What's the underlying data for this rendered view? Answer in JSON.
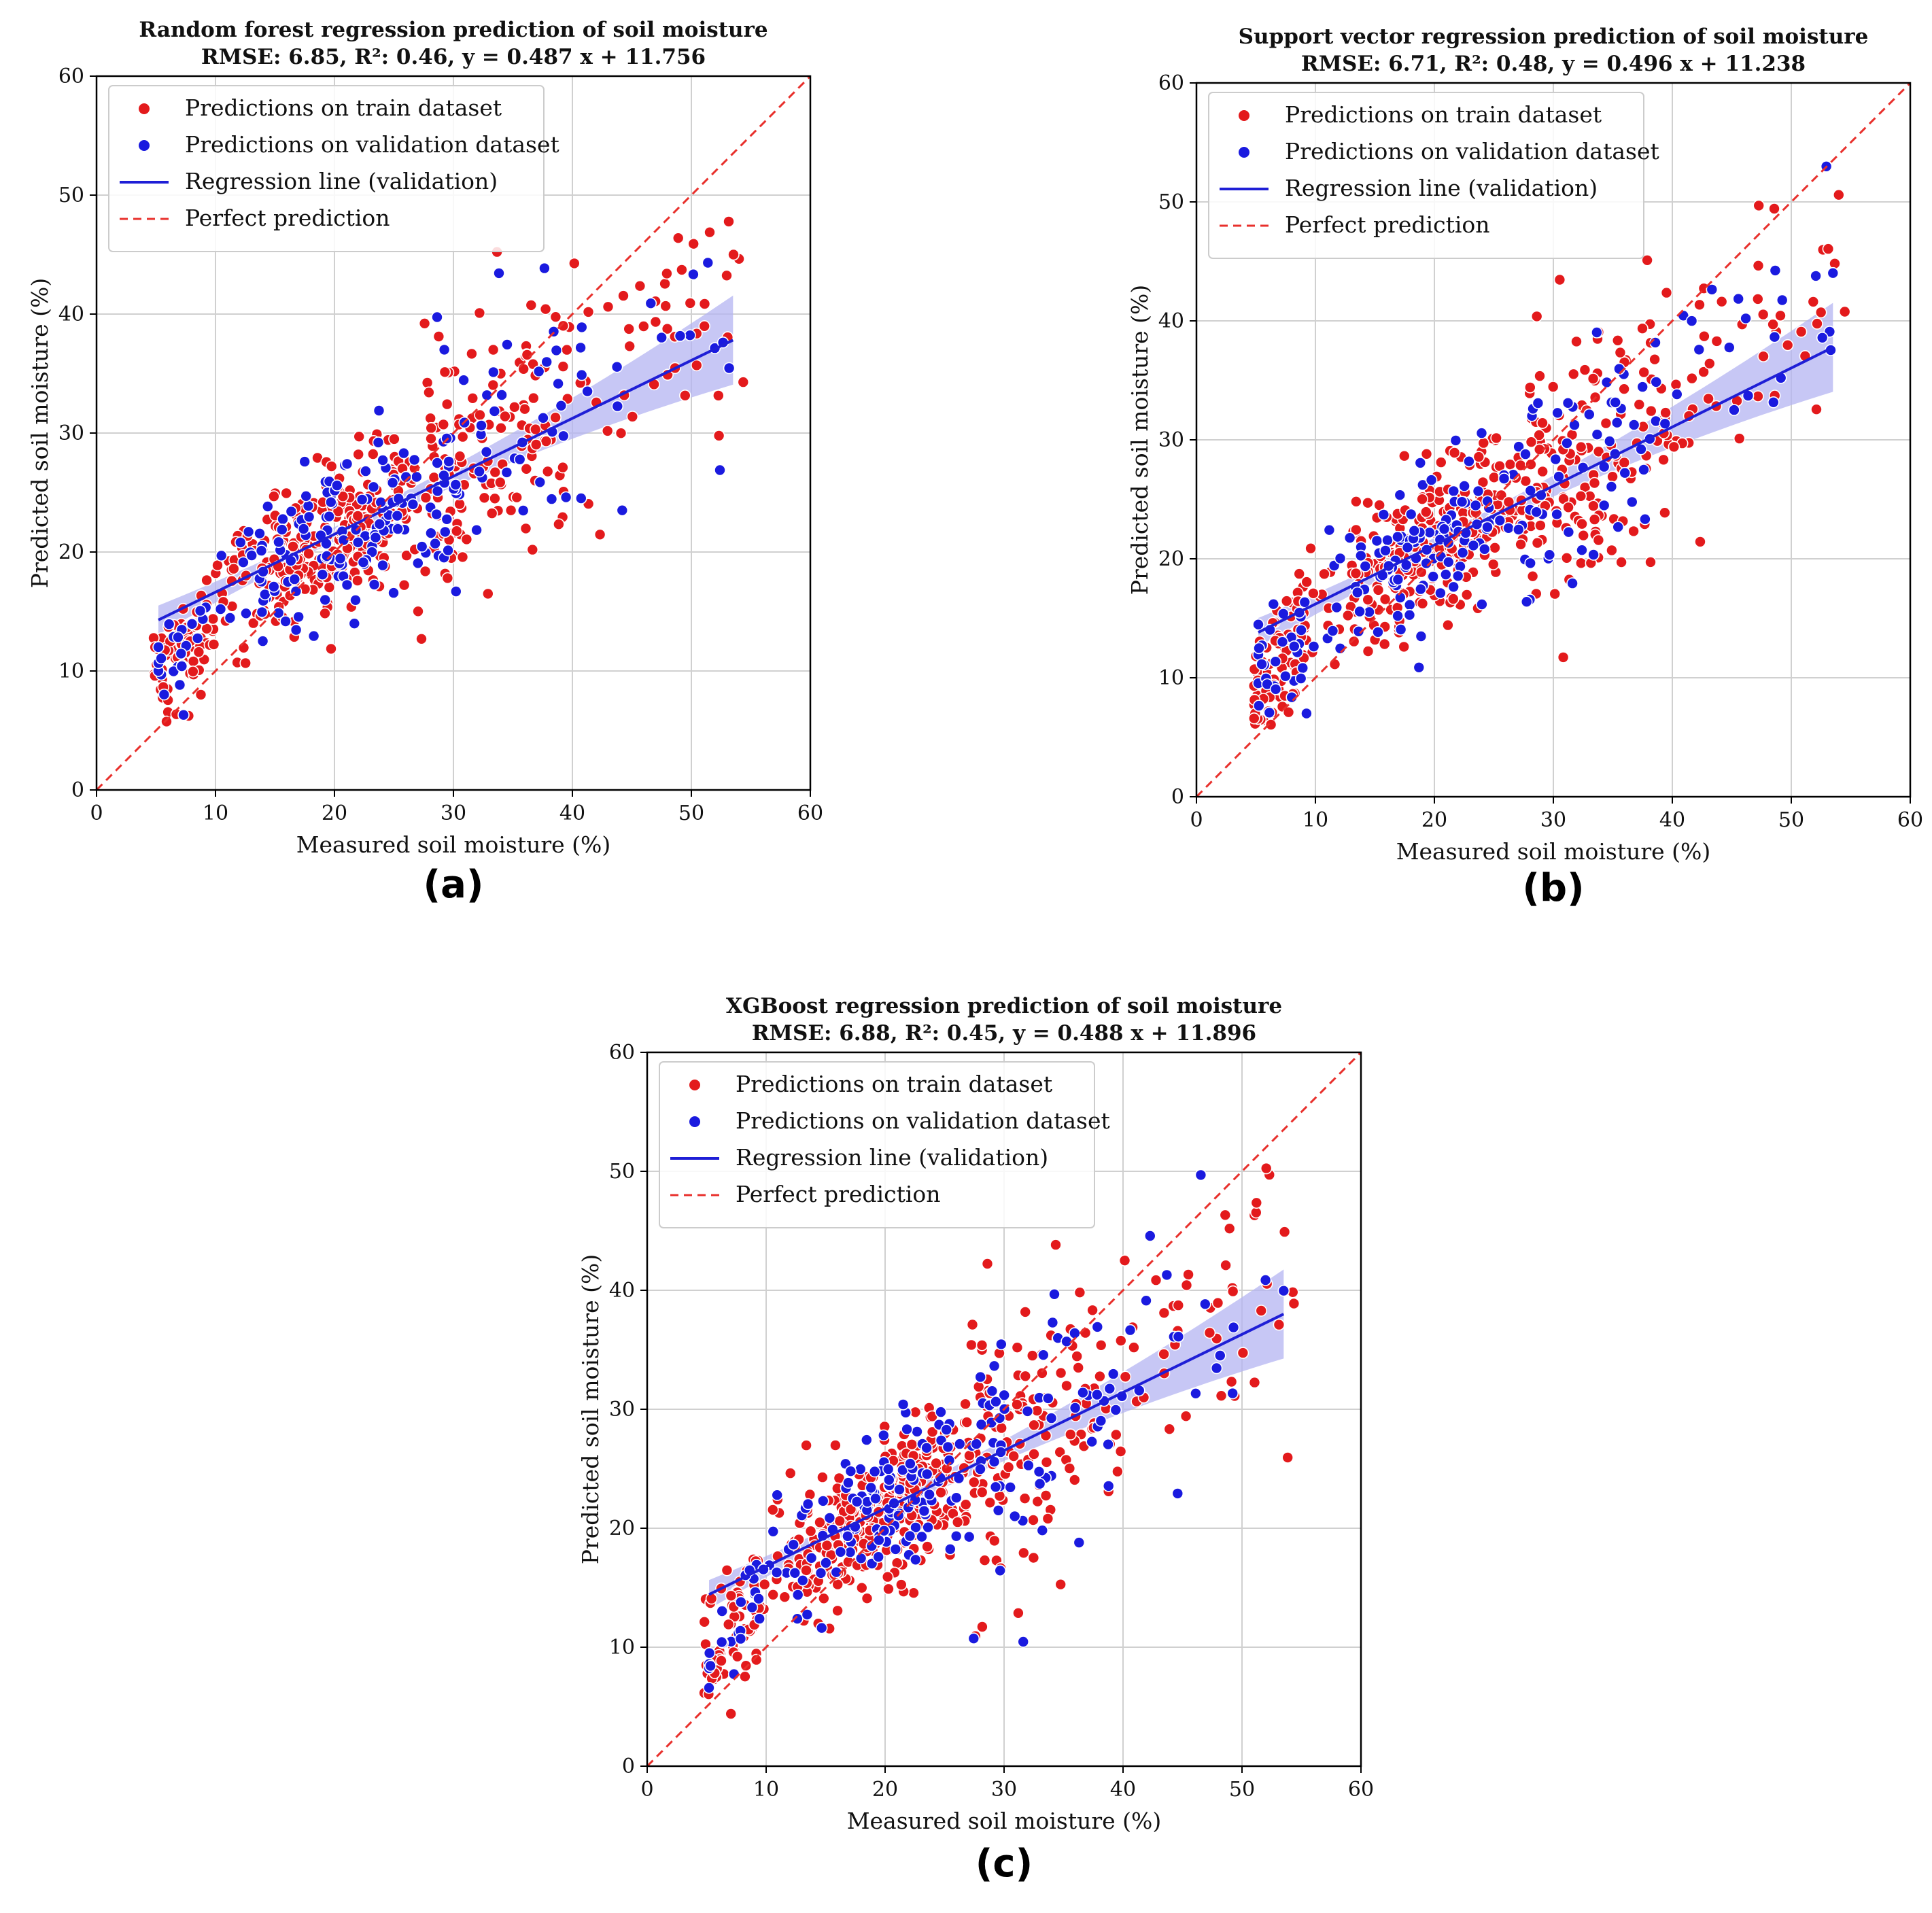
{
  "chart_data": [
    {
      "type": "scatter",
      "panel_label": "(a)",
      "title": "Random forest regression prediction of soil moisture",
      "subtitle": "RMSE: 6.85, R²: 0.46, y = 0.487 x + 11.756",
      "xlabel": "Measured soil moisture (%)",
      "ylabel": "Predicted soil moisture (%)",
      "xlim": [
        0,
        60
      ],
      "ylim": [
        0,
        60
      ],
      "xticks": [
        "0",
        "10",
        "20",
        "30",
        "40",
        "50",
        "60"
      ],
      "yticks": [
        "0",
        "10",
        "20",
        "30",
        "40",
        "50",
        "60"
      ],
      "grid": true,
      "legend": "top-left",
      "legend_entries": [
        "Predictions on train dataset",
        "Predictions on validation dataset",
        "Regression line (validation)",
        "Perfect prediction"
      ],
      "regression": {
        "slope": 0.487,
        "intercept": 11.756,
        "x_range": [
          5.2,
          53.5
        ]
      },
      "seed": 11,
      "colors": {
        "train": "#e31a1c",
        "validation": "#1a1adf",
        "line": "#1f1fd6",
        "band": "#b4b4f2",
        "perfect": "#e8302c"
      },
      "series": [
        {
          "name": "Predictions on train dataset",
          "count": 540
        },
        {
          "name": "Predictions on validation dataset",
          "count": 230
        }
      ]
    },
    {
      "type": "scatter",
      "panel_label": "(b)",
      "title": "Support vector regression prediction of soil moisture",
      "subtitle": "RMSE: 6.71, R²: 0.48, y = 0.496 x + 11.238",
      "xlabel": "Measured soil moisture (%)",
      "ylabel": "Predicted soil moisture (%)",
      "xlim": [
        0,
        60
      ],
      "ylim": [
        0,
        60
      ],
      "xticks": [
        "0",
        "10",
        "20",
        "30",
        "40",
        "50",
        "60"
      ],
      "yticks": [
        "0",
        "10",
        "20",
        "30",
        "40",
        "50",
        "60"
      ],
      "grid": true,
      "legend": "top-left",
      "legend_entries": [
        "Predictions on train dataset",
        "Predictions on validation dataset",
        "Regression line (validation)",
        "Perfect prediction"
      ],
      "regression": {
        "slope": 0.496,
        "intercept": 11.238,
        "x_range": [
          5.2,
          53.5
        ]
      },
      "seed": 23,
      "colors": {
        "train": "#e31a1c",
        "validation": "#1a1adf",
        "line": "#1f1fd6",
        "band": "#b4b4f2",
        "perfect": "#e8302c"
      },
      "series": [
        {
          "name": "Predictions on train dataset",
          "count": 540
        },
        {
          "name": "Predictions on validation dataset",
          "count": 230
        }
      ]
    },
    {
      "type": "scatter",
      "panel_label": "(c)",
      "title": "XGBoost regression prediction of soil moisture",
      "subtitle": "RMSE: 6.88, R²: 0.45, y = 0.488 x + 11.896",
      "xlabel": "Measured soil moisture (%)",
      "ylabel": "Predicted soil moisture (%)",
      "xlim": [
        0,
        60
      ],
      "ylim": [
        0,
        60
      ],
      "xticks": [
        "0",
        "10",
        "20",
        "30",
        "40",
        "50",
        "60"
      ],
      "yticks": [
        "0",
        "10",
        "20",
        "30",
        "40",
        "50",
        "60"
      ],
      "grid": true,
      "legend": "top-left",
      "legend_entries": [
        "Predictions on train dataset",
        "Predictions on validation dataset",
        "Regression line (validation)",
        "Perfect prediction"
      ],
      "regression": {
        "slope": 0.488,
        "intercept": 11.896,
        "x_range": [
          5.2,
          53.5
        ]
      },
      "seed": 37,
      "colors": {
        "train": "#e31a1c",
        "validation": "#1a1adf",
        "line": "#1f1fd6",
        "band": "#b4b4f2",
        "perfect": "#e8302c"
      },
      "series": [
        {
          "name": "Predictions on train dataset",
          "count": 540
        },
        {
          "name": "Predictions on validation dataset",
          "count": 230
        }
      ]
    }
  ]
}
